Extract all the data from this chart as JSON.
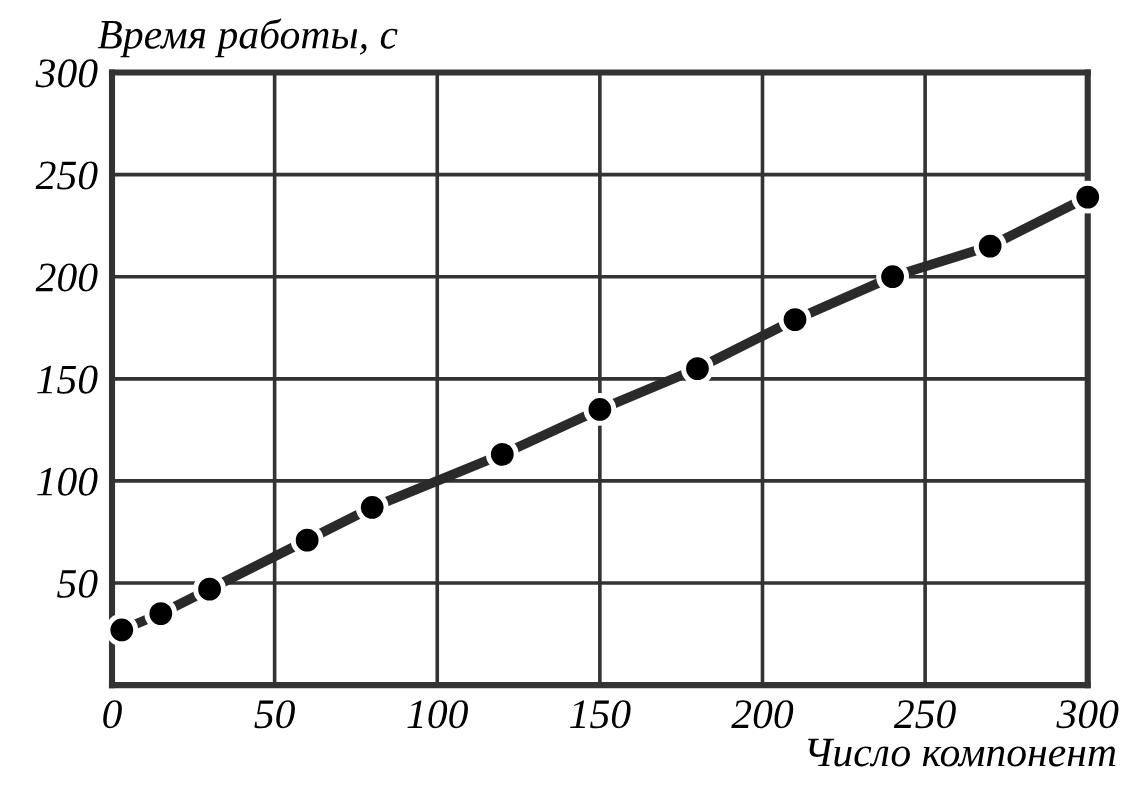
{
  "chart_data": {
    "type": "line",
    "ylabel": "Время работы, с",
    "xlabel": "Число компонент",
    "x": [
      3,
      15,
      30,
      60,
      80,
      120,
      150,
      180,
      210,
      240,
      270,
      300
    ],
    "series": [
      {
        "color": "#2a2a2a",
        "values": [
          27,
          35,
          47,
          71,
          87,
          113,
          135,
          155,
          179,
          200,
          215,
          239
        ]
      }
    ],
    "xlim": [
      0,
      300
    ],
    "xticks": [
      0,
      50,
      100,
      150,
      200,
      250,
      300
    ],
    "ylim": [
      0,
      300
    ],
    "yticks": [
      {
        "value": 0,
        "label": null
      },
      50,
      100,
      150,
      200,
      250,
      300
    ],
    "grid": true,
    "marker": "circle",
    "line_style": "solid",
    "legend": false
  }
}
